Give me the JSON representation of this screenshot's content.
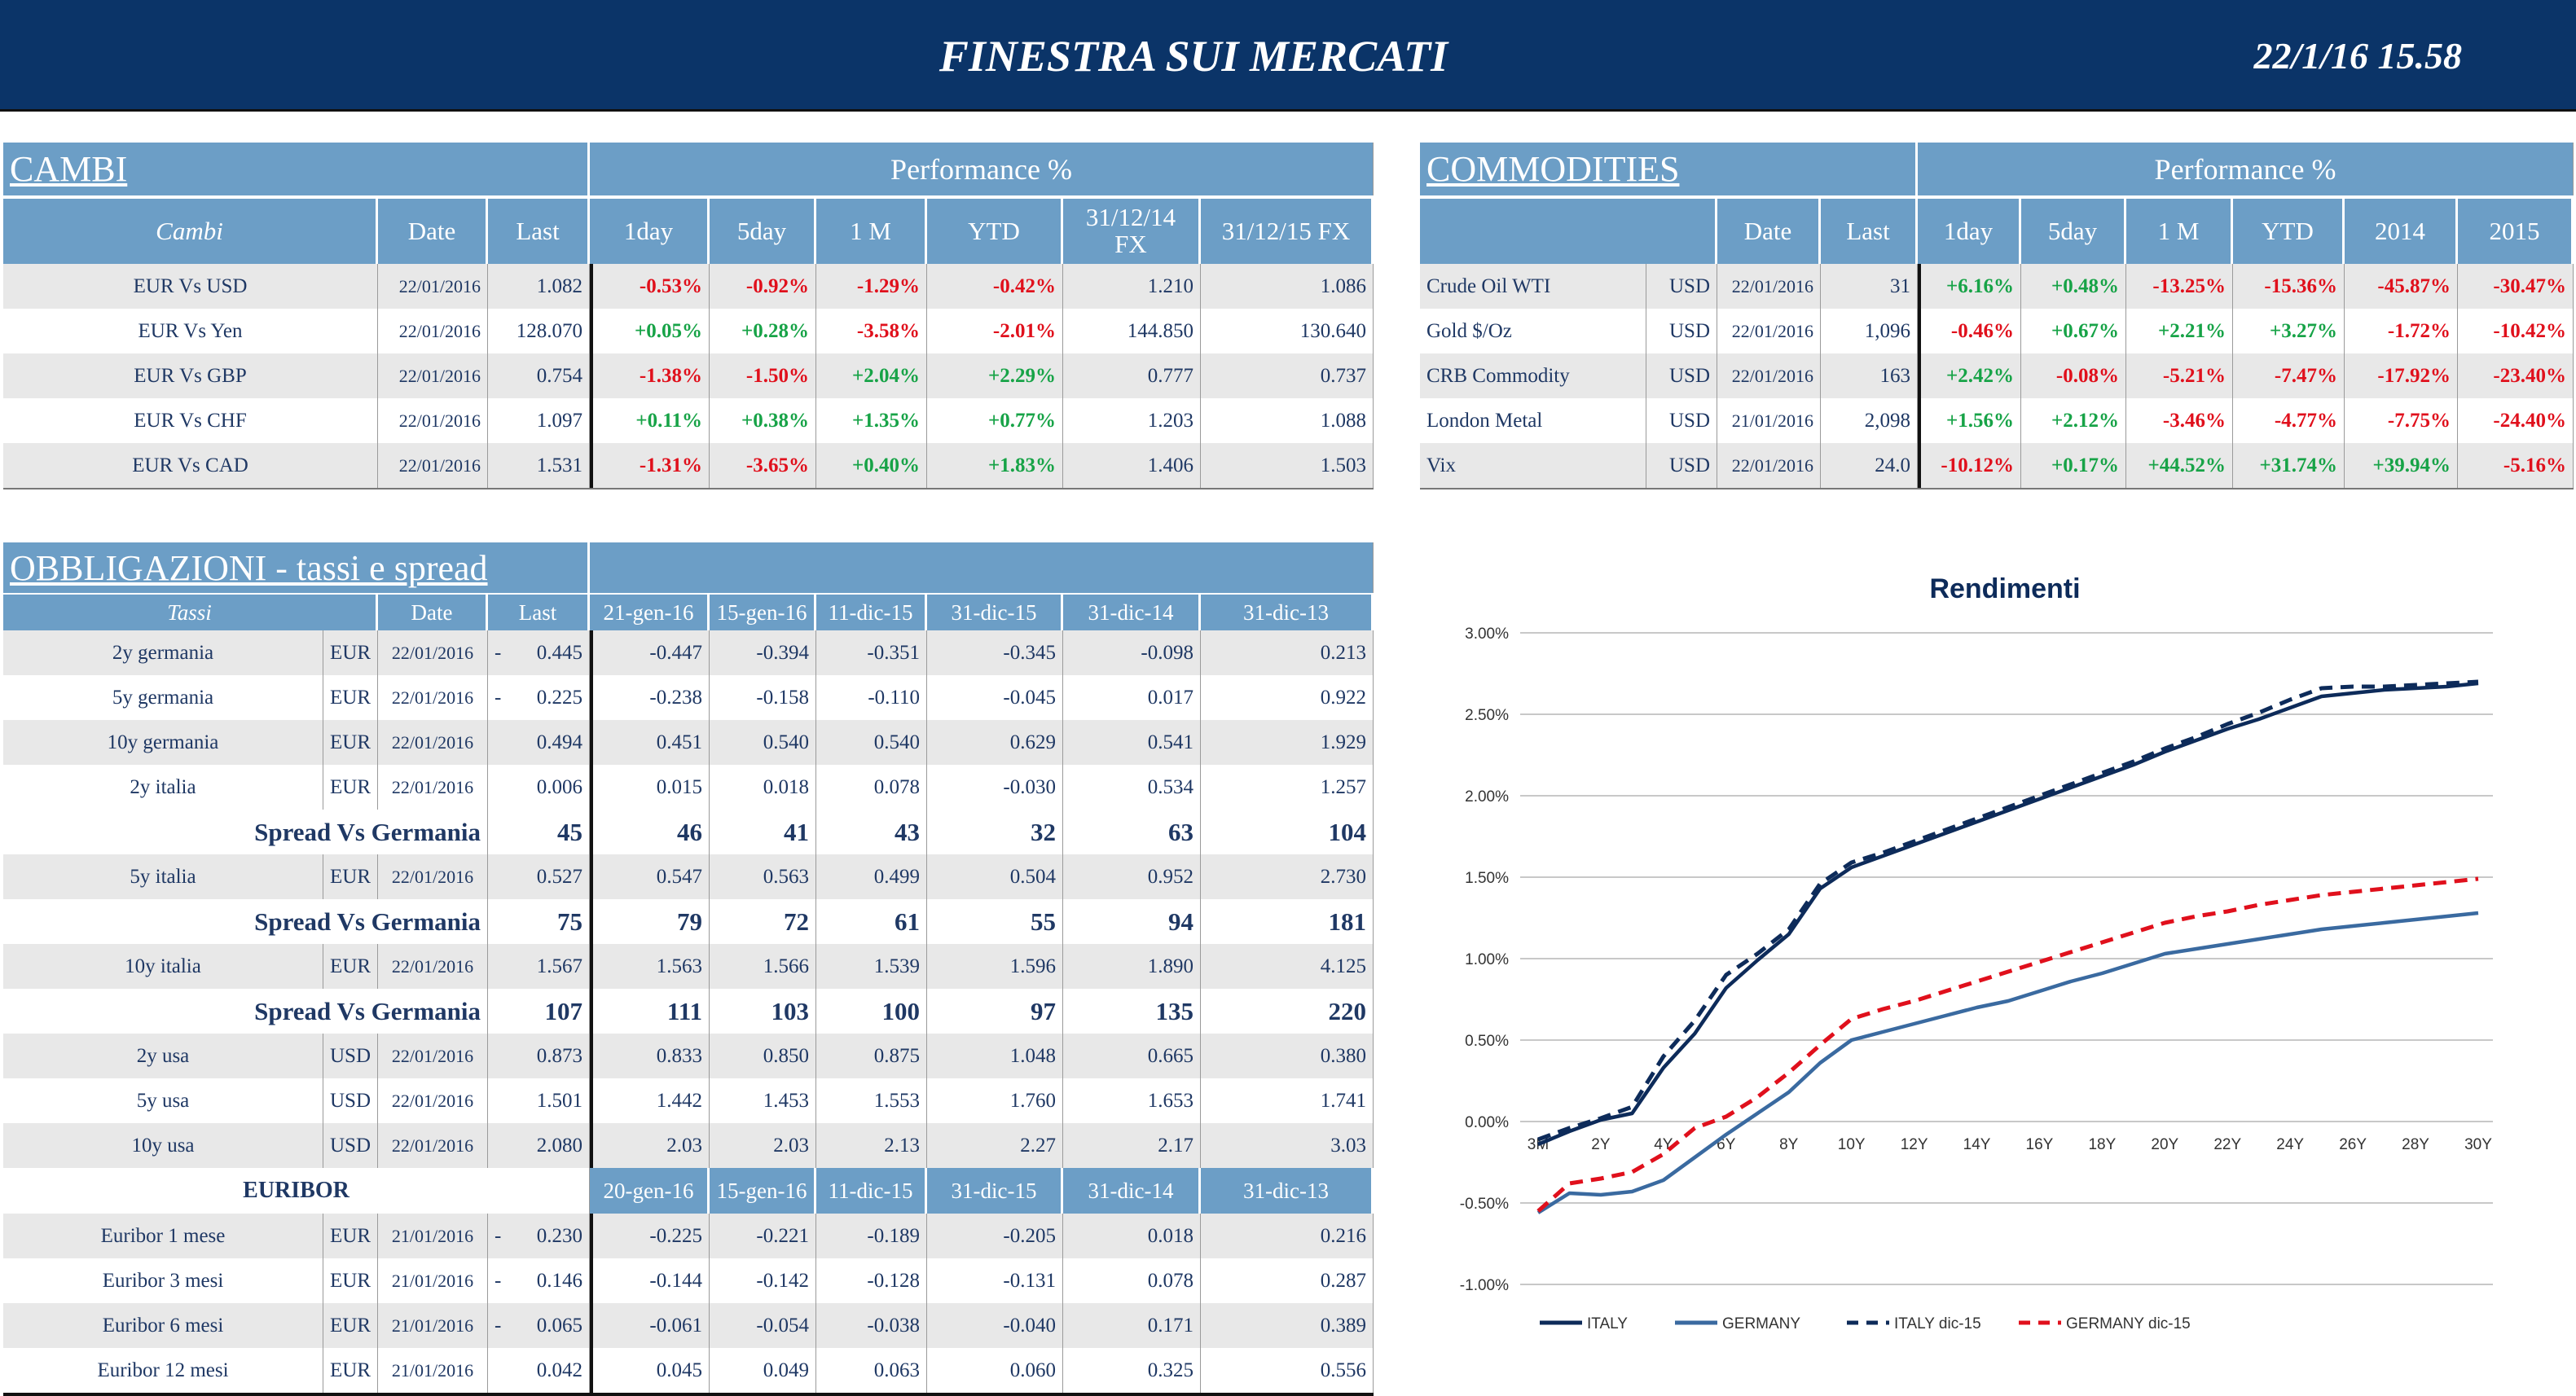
{
  "header": {
    "title": "FINESTRA SUI MERCATI",
    "timestamp": "22/1/16 15.58"
  },
  "cambi": {
    "title": "CAMBI",
    "perf_label": "Performance  %",
    "columns": [
      "Cambi",
      "Date",
      "Last",
      "1day",
      "5day",
      "1 M",
      "YTD",
      "31/12/14 FX",
      "31/12/15  FX"
    ],
    "rows": [
      [
        "EUR Vs USD",
        "22/01/2016",
        "1.082",
        "-0.53%",
        "-0.92%",
        "-1.29%",
        "-0.42%",
        "1.210",
        "1.086"
      ],
      [
        "EUR Vs Yen",
        "22/01/2016",
        "128.070",
        "+0.05%",
        "+0.28%",
        "-3.58%",
        "-2.01%",
        "144.850",
        "130.640"
      ],
      [
        "EUR Vs GBP",
        "22/01/2016",
        "0.754",
        "-1.38%",
        "-1.50%",
        "+2.04%",
        "+2.29%",
        "0.777",
        "0.737"
      ],
      [
        "EUR Vs CHF",
        "22/01/2016",
        "1.097",
        "+0.11%",
        "+0.38%",
        "+1.35%",
        "+0.77%",
        "1.203",
        "1.088"
      ],
      [
        "EUR Vs CAD",
        "22/01/2016",
        "1.531",
        "-1.31%",
        "-3.65%",
        "+0.40%",
        "+1.83%",
        "1.406",
        "1.503"
      ]
    ]
  },
  "commodities": {
    "title": "COMMODITIES",
    "perf_label": "Performance  %",
    "columns": [
      "",
      "Date",
      "Last",
      "1day",
      "5day",
      "1 M",
      "YTD",
      "2014",
      "2015"
    ],
    "rows": [
      [
        "Crude Oil WTI",
        "USD",
        "22/01/2016",
        "31",
        "+6.16%",
        "+0.48%",
        "-13.25%",
        "-15.36%",
        "-45.87%",
        "-30.47%"
      ],
      [
        "Gold $/Oz",
        "USD",
        "22/01/2016",
        "1,096",
        "-0.46%",
        "+0.67%",
        "+2.21%",
        "+3.27%",
        "-1.72%",
        "-10.42%"
      ],
      [
        "CRB Commodity",
        "USD",
        "22/01/2016",
        "163",
        "+2.42%",
        "-0.08%",
        "-5.21%",
        "-7.47%",
        "-17.92%",
        "-23.40%"
      ],
      [
        "London Metal",
        "USD",
        "21/01/2016",
        "2,098",
        "+1.56%",
        "+2.12%",
        "-3.46%",
        "-4.77%",
        "-7.75%",
        "-24.40%"
      ],
      [
        "Vix",
        "USD",
        "22/01/2016",
        "24.0",
        "-10.12%",
        "+0.17%",
        "+44.52%",
        "+31.74%",
        "+39.94%",
        "-5.16%"
      ]
    ]
  },
  "bonds": {
    "title": "OBBLIGAZIONI - tassi e spread",
    "columns": [
      "Tassi",
      "Date",
      "Last",
      "21-gen-16",
      "15-gen-16",
      "11-dic-15",
      "31-dic-15",
      "31-dic-14",
      "31-dic-13"
    ],
    "rows": [
      {
        "type": "rate",
        "cells": [
          "2y germania",
          "EUR",
          "22/01/2016",
          "-",
          "0.445",
          "-0.447",
          "-0.394",
          "-0.351",
          "-0.345",
          "-0.098",
          "0.213"
        ]
      },
      {
        "type": "rate",
        "cells": [
          "5y germania",
          "EUR",
          "22/01/2016",
          "-",
          "0.225",
          "-0.238",
          "-0.158",
          "-0.110",
          "-0.045",
          "0.017",
          "0.922"
        ]
      },
      {
        "type": "rate",
        "cells": [
          "10y germania",
          "EUR",
          "22/01/2016",
          "",
          "0.494",
          "0.451",
          "0.540",
          "0.540",
          "0.629",
          "0.541",
          "1.929"
        ]
      },
      {
        "type": "rate",
        "cells": [
          "2y italia",
          "EUR",
          "22/01/2016",
          "",
          "0.006",
          "0.015",
          "0.018",
          "0.078",
          "-0.030",
          "0.534",
          "1.257"
        ]
      },
      {
        "type": "spread",
        "cells": [
          "Spread Vs Germania",
          "45",
          "46",
          "41",
          "43",
          "32",
          "63",
          "104"
        ]
      },
      {
        "type": "rate",
        "cells": [
          "5y italia",
          "EUR",
          "22/01/2016",
          "",
          "0.527",
          "0.547",
          "0.563",
          "0.499",
          "0.504",
          "0.952",
          "2.730"
        ]
      },
      {
        "type": "spread",
        "cells": [
          "Spread Vs Germania",
          "75",
          "79",
          "72",
          "61",
          "55",
          "94",
          "181"
        ]
      },
      {
        "type": "rate",
        "cells": [
          "10y italia",
          "EUR",
          "22/01/2016",
          "",
          "1.567",
          "1.563",
          "1.566",
          "1.539",
          "1.596",
          "1.890",
          "4.125"
        ]
      },
      {
        "type": "spread",
        "cells": [
          "Spread Vs Germania",
          "107",
          "111",
          "103",
          "100",
          "97",
          "135",
          "220"
        ]
      },
      {
        "type": "rate",
        "cells": [
          "2y usa",
          "USD",
          "22/01/2016",
          "",
          "0.873",
          "0.833",
          "0.850",
          "0.875",
          "1.048",
          "0.665",
          "0.380"
        ]
      },
      {
        "type": "rate",
        "cells": [
          "5y usa",
          "USD",
          "22/01/2016",
          "",
          "1.501",
          "1.442",
          "1.453",
          "1.553",
          "1.760",
          "1.653",
          "1.741"
        ]
      },
      {
        "type": "rate",
        "cells": [
          "10y usa",
          "USD",
          "22/01/2016",
          "",
          "2.080",
          "2.03",
          "2.03",
          "2.13",
          "2.27",
          "2.17",
          "3.03"
        ]
      }
    ]
  },
  "euribor": {
    "title": "EURIBOR",
    "columns": [
      "20-gen-16",
      "15-gen-16",
      "11-dic-15",
      "31-dic-15",
      "31-dic-14",
      "31-dic-13"
    ],
    "rows": [
      [
        "Euribor 1 mese",
        "EUR",
        "21/01/2016",
        "-",
        "0.230",
        "-0.225",
        "-0.221",
        "-0.189",
        "-0.205",
        "0.018",
        "0.216"
      ],
      [
        "Euribor 3 mesi",
        "EUR",
        "21/01/2016",
        "-",
        "0.146",
        "-0.144",
        "-0.142",
        "-0.128",
        "-0.131",
        "0.078",
        "0.287"
      ],
      [
        "Euribor 6 mesi",
        "EUR",
        "21/01/2016",
        "-",
        "0.065",
        "-0.061",
        "-0.054",
        "-0.038",
        "-0.040",
        "0.171",
        "0.389"
      ],
      [
        "Euribor 12 mesi",
        "EUR",
        "21/01/2016",
        "",
        "0.042",
        "0.045",
        "0.049",
        "0.063",
        "0.060",
        "0.325",
        "0.556"
      ]
    ]
  },
  "colors": {
    "banner": "#0b3468",
    "header": "#6c9ec6",
    "negative": "#e0101c",
    "positive": "#17a347",
    "text": "#1f3864"
  },
  "chart_data": {
    "type": "line",
    "title": "Rendimenti",
    "categories": [
      "3M",
      "1Y",
      "2Y",
      "3Y",
      "4Y",
      "5Y",
      "6Y",
      "7Y",
      "8Y",
      "9Y",
      "10Y",
      "11Y",
      "12Y",
      "13Y",
      "14Y",
      "15Y",
      "16Y",
      "17Y",
      "18Y",
      "19Y",
      "20Y",
      "21Y",
      "22Y",
      "23Y",
      "24Y",
      "25Y",
      "26Y",
      "27Y",
      "28Y",
      "29Y",
      "30Y"
    ],
    "tick_labels": [
      "3M",
      "2Y",
      "4Y",
      "6Y",
      "8Y",
      "10Y",
      "12Y",
      "14Y",
      "16Y",
      "18Y",
      "20Y",
      "22Y",
      "24Y",
      "26Y",
      "28Y",
      "30Y"
    ],
    "y_ticks": [
      "3.00%",
      "2.50%",
      "2.00%",
      "1.50%",
      "1.00%",
      "0.50%",
      "0.00%",
      "-0.50%",
      "-1.00%"
    ],
    "ylim": [
      -1.0,
      3.0
    ],
    "grid": true,
    "legend": "bottom",
    "series": [
      {
        "name": "ITALY",
        "color": "#0d2b5a",
        "dash": false,
        "values": [
          -0.14,
          -0.06,
          0.01,
          0.05,
          0.33,
          0.54,
          0.82,
          0.99,
          1.15,
          1.43,
          1.56,
          1.63,
          1.7,
          1.77,
          1.84,
          1.91,
          1.98,
          2.05,
          2.12,
          2.19,
          2.27,
          2.34,
          2.41,
          2.47,
          2.54,
          2.61,
          2.63,
          2.65,
          2.66,
          2.67,
          2.69
        ]
      },
      {
        "name": "GERMANY",
        "color": "#3a6aa0",
        "dash": false,
        "values": [
          -0.56,
          -0.44,
          -0.45,
          -0.43,
          -0.36,
          -0.22,
          -0.08,
          0.05,
          0.18,
          0.36,
          0.5,
          0.55,
          0.6,
          0.65,
          0.7,
          0.74,
          0.8,
          0.86,
          0.91,
          0.97,
          1.03,
          1.06,
          1.09,
          1.12,
          1.15,
          1.18,
          1.2,
          1.22,
          1.24,
          1.26,
          1.28
        ]
      },
      {
        "name": "ITALY dic-15",
        "color": "#0d2b5a",
        "dash": true,
        "values": [
          -0.11,
          -0.04,
          0.02,
          0.09,
          0.4,
          0.62,
          0.9,
          1.03,
          1.18,
          1.46,
          1.59,
          1.65,
          1.72,
          1.79,
          1.86,
          1.93,
          2.0,
          2.07,
          2.14,
          2.21,
          2.29,
          2.36,
          2.44,
          2.51,
          2.59,
          2.66,
          2.67,
          2.67,
          2.68,
          2.69,
          2.7
        ]
      },
      {
        "name": "GERMANY dic-15",
        "color": "#e0101c",
        "dash": true,
        "values": [
          -0.55,
          -0.38,
          -0.35,
          -0.31,
          -0.2,
          -0.04,
          0.03,
          0.15,
          0.3,
          0.47,
          0.63,
          0.69,
          0.74,
          0.8,
          0.86,
          0.92,
          0.98,
          1.04,
          1.1,
          1.16,
          1.22,
          1.26,
          1.29,
          1.33,
          1.36,
          1.39,
          1.41,
          1.43,
          1.45,
          1.47,
          1.49
        ]
      }
    ]
  }
}
